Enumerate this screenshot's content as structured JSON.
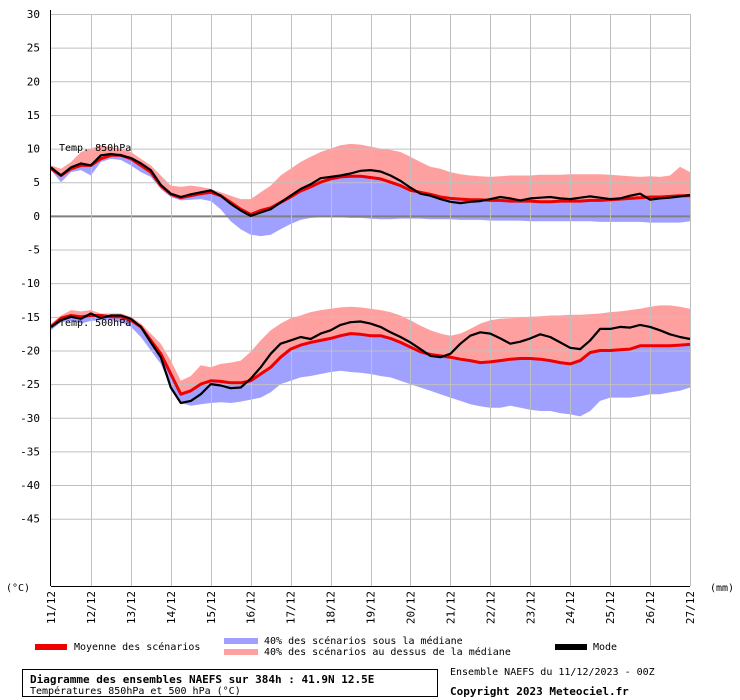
{
  "chart_data": {
    "type": "area",
    "title": "Diagramme des ensembles NAEFS sur 384h : 41.9N 12.5E",
    "subtitle": "Températures 850hPa et 500 hPa (°C)",
    "y_unit_left": "(°C)",
    "y_unit_right": "(mm)",
    "ylim": [
      -55,
      30
    ],
    "yticks": [
      30,
      25,
      20,
      15,
      10,
      5,
      0,
      -5,
      -10,
      -15,
      -20,
      -25,
      -30,
      -35,
      -40,
      -45
    ],
    "x_tick_labels": [
      "11/12",
      "12/12",
      "13/12",
      "14/12",
      "15/12",
      "16/12",
      "17/12",
      "18/12",
      "19/12",
      "20/12",
      "21/12",
      "22/12",
      "23/12",
      "24/12",
      "25/12",
      "26/12",
      "27/12"
    ],
    "x_days": [
      0,
      0.25,
      0.5,
      0.75,
      1,
      1.25,
      1.5,
      1.75,
      2,
      2.25,
      2.5,
      2.75,
      3,
      3.25,
      3.5,
      3.75,
      4,
      4.25,
      4.5,
      4.75,
      5,
      5.25,
      5.5,
      5.75,
      6,
      6.25,
      6.5,
      6.75,
      7,
      7.25,
      7.5,
      7.75,
      8,
      8.25,
      8.5,
      8.75,
      9,
      9.25,
      9.5,
      9.75,
      10,
      10.25,
      10.5,
      10.75,
      11,
      11.25,
      11.5,
      11.75,
      12,
      12.25,
      12.5,
      12.75,
      13,
      13.25,
      13.5,
      13.75,
      14,
      14.25,
      14.5,
      14.75,
      15,
      15.25,
      15.5,
      15.75,
      16
    ],
    "annotations": [
      "Temp. 850hPa",
      "Temp. 500hPa"
    ],
    "colors": {
      "mean": "#ee0000",
      "lower_band": "#a0a0ff",
      "upper_band": "#ffa0a0",
      "mode": "#000000",
      "grid": "#c0c0c0",
      "zero_line": "#808080"
    },
    "series": [
      {
        "group": "850hPa",
        "name": "Moyenne des scénarios",
        "values": [
          7.0,
          6.0,
          7.0,
          7.5,
          7.5,
          8.5,
          9.0,
          9.0,
          8.5,
          7.5,
          6.5,
          4.5,
          3.2,
          2.7,
          3.0,
          3.3,
          3.5,
          3.0,
          2.0,
          1.0,
          0.2,
          0.8,
          1.2,
          2.0,
          2.8,
          3.7,
          4.3,
          5.0,
          5.5,
          5.8,
          5.9,
          5.9,
          5.7,
          5.5,
          5.0,
          4.5,
          3.8,
          3.5,
          3.2,
          2.8,
          2.6,
          2.5,
          2.4,
          2.4,
          2.3,
          2.3,
          2.2,
          2.2,
          2.2,
          2.1,
          2.1,
          2.2,
          2.2,
          2.2,
          2.3,
          2.3,
          2.4,
          2.5,
          2.6,
          2.7,
          2.8,
          2.8,
          2.9,
          3.0,
          3.0
        ]
      },
      {
        "group": "850hPa",
        "name": "Mode",
        "values": [
          7.2,
          6.0,
          7.2,
          7.8,
          7.5,
          9.0,
          9.2,
          9.0,
          8.6,
          7.8,
          6.8,
          4.6,
          3.3,
          2.8,
          3.2,
          3.5,
          3.8,
          3.0,
          1.8,
          0.8,
          0.0,
          0.5,
          1.0,
          2.0,
          3.0,
          4.0,
          4.7,
          5.6,
          5.8,
          6.0,
          6.3,
          6.7,
          6.8,
          6.6,
          6.0,
          5.2,
          4.2,
          3.3,
          3.0,
          2.5,
          2.1,
          1.9,
          2.1,
          2.2,
          2.5,
          2.8,
          2.6,
          2.3,
          2.6,
          2.7,
          2.8,
          2.6,
          2.5,
          2.7,
          2.9,
          2.7,
          2.5,
          2.6,
          3.0,
          3.3,
          2.4,
          2.6,
          2.7,
          2.9,
          3.1
        ]
      },
      {
        "group": "850hPa",
        "name": "40% des scénarios sous la médiane",
        "lower": [
          6.8,
          5.0,
          6.5,
          6.8,
          6.0,
          8.0,
          8.5,
          8.3,
          7.5,
          6.5,
          5.8,
          4.0,
          2.8,
          2.3,
          2.4,
          2.5,
          2.2,
          1.0,
          -0.8,
          -2.0,
          -2.8,
          -3.0,
          -2.8,
          -2.0,
          -1.2,
          -0.6,
          -0.3,
          -0.2,
          -0.2,
          -0.2,
          -0.3,
          -0.3,
          -0.4,
          -0.5,
          -0.5,
          -0.4,
          -0.4,
          -0.4,
          -0.5,
          -0.5,
          -0.5,
          -0.6,
          -0.6,
          -0.6,
          -0.7,
          -0.7,
          -0.7,
          -0.7,
          -0.8,
          -0.8,
          -0.8,
          -0.8,
          -0.8,
          -0.8,
          -0.8,
          -0.9,
          -0.9,
          -0.9,
          -0.9,
          -0.9,
          -1.0,
          -1.0,
          -1.0,
          -1.0,
          -0.8
        ]
      },
      {
        "group": "850hPa",
        "name": "40% des scénarios au dessus de la médiane",
        "upper": [
          7.5,
          7.0,
          8.0,
          9.5,
          10.0,
          10.5,
          10.2,
          10.0,
          9.5,
          8.5,
          7.5,
          6.0,
          4.5,
          4.3,
          4.5,
          4.3,
          4.0,
          3.5,
          3.0,
          2.5,
          2.5,
          3.5,
          4.5,
          6.0,
          7.0,
          8.0,
          8.8,
          9.5,
          10.0,
          10.5,
          10.7,
          10.6,
          10.3,
          10.0,
          9.8,
          9.5,
          8.8,
          8.0,
          7.3,
          7.0,
          6.5,
          6.2,
          6.0,
          5.9,
          5.8,
          5.9,
          6.0,
          6.0,
          6.0,
          6.1,
          6.1,
          6.1,
          6.2,
          6.2,
          6.2,
          6.2,
          6.1,
          6.0,
          5.9,
          5.8,
          5.9,
          5.8,
          6.0,
          7.3,
          6.5
        ]
      },
      {
        "group": "500hPa",
        "name": "Moyenne des scénarios",
        "values": [
          -16.5,
          -15.2,
          -14.8,
          -15.0,
          -14.8,
          -14.8,
          -15.0,
          -15.0,
          -15.5,
          -16.5,
          -18.5,
          -20.5,
          -23.5,
          -26.5,
          -26.0,
          -25.0,
          -24.5,
          -24.6,
          -24.8,
          -24.8,
          -24.5,
          -23.5,
          -22.5,
          -21.0,
          -19.8,
          -19.2,
          -18.8,
          -18.5,
          -18.2,
          -17.8,
          -17.5,
          -17.6,
          -17.8,
          -17.8,
          -18.2,
          -18.8,
          -19.5,
          -20.2,
          -20.6,
          -20.8,
          -21.0,
          -21.3,
          -21.5,
          -21.8,
          -21.7,
          -21.5,
          -21.3,
          -21.2,
          -21.2,
          -21.3,
          -21.5,
          -21.8,
          -22.0,
          -21.5,
          -20.3,
          -20.0,
          -20.0,
          -19.9,
          -19.8,
          -19.3,
          -19.3,
          -19.3,
          -19.3,
          -19.2,
          -19.1
        ]
      },
      {
        "group": "500hPa",
        "name": "Mode",
        "values": [
          -16.5,
          -15.5,
          -15.0,
          -15.3,
          -14.5,
          -15.2,
          -14.8,
          -14.8,
          -15.3,
          -16.5,
          -18.8,
          -21.0,
          -25.5,
          -27.8,
          -27.5,
          -26.5,
          -25.0,
          -25.2,
          -25.6,
          -25.5,
          -24.2,
          -22.5,
          -20.5,
          -19.0,
          -18.5,
          -18.0,
          -18.3,
          -17.5,
          -17.0,
          -16.2,
          -15.8,
          -15.7,
          -16.0,
          -16.5,
          -17.3,
          -18.0,
          -18.8,
          -19.8,
          -20.8,
          -21.0,
          -20.5,
          -19.0,
          -17.8,
          -17.3,
          -17.5,
          -18.2,
          -19.0,
          -18.7,
          -18.2,
          -17.6,
          -18.0,
          -18.8,
          -19.6,
          -19.8,
          -18.5,
          -16.8,
          -16.8,
          -16.5,
          -16.6,
          -16.2,
          -16.5,
          -17.0,
          -17.6,
          -18.0,
          -18.3
        ]
      },
      {
        "group": "500hPa",
        "name": "40% des scénarios sous la médiane",
        "lower": [
          -17.0,
          -15.8,
          -15.6,
          -16.0,
          -15.6,
          -15.5,
          -15.5,
          -15.8,
          -16.5,
          -18.0,
          -20.0,
          -22.0,
          -25.5,
          -27.8,
          -28.2,
          -28.0,
          -27.8,
          -27.7,
          -27.8,
          -27.6,
          -27.3,
          -27.0,
          -26.2,
          -25.0,
          -24.5,
          -24.0,
          -23.8,
          -23.5,
          -23.2,
          -23.0,
          -23.2,
          -23.3,
          -23.5,
          -23.8,
          -24.0,
          -24.5,
          -25.0,
          -25.5,
          -26.0,
          -26.5,
          -27.0,
          -27.5,
          -28.0,
          -28.3,
          -28.5,
          -28.5,
          -28.2,
          -28.5,
          -28.8,
          -29.0,
          -29.0,
          -29.3,
          -29.5,
          -29.8,
          -29.0,
          -27.5,
          -27.0,
          -27.0,
          -27.0,
          -26.8,
          -26.5,
          -26.5,
          -26.2,
          -26.0,
          -25.5
        ]
      },
      {
        "group": "500hPa",
        "name": "40% des scénarios au dessus de la médiane",
        "upper": [
          -16.0,
          -14.8,
          -14.0,
          -14.2,
          -14.0,
          -14.5,
          -14.5,
          -14.5,
          -15.0,
          -16.0,
          -17.5,
          -19.0,
          -21.5,
          -24.5,
          -23.8,
          -22.2,
          -22.5,
          -22.0,
          -21.8,
          -21.5,
          -20.2,
          -18.5,
          -17.0,
          -16.0,
          -15.2,
          -14.8,
          -14.3,
          -14.0,
          -13.8,
          -13.6,
          -13.5,
          -13.6,
          -13.8,
          -14.0,
          -14.3,
          -14.8,
          -15.5,
          -16.3,
          -17.0,
          -17.5,
          -17.8,
          -17.5,
          -16.8,
          -16.0,
          -15.5,
          -15.3,
          -15.2,
          -15.1,
          -15.0,
          -14.9,
          -14.8,
          -14.8,
          -14.7,
          -14.7,
          -14.6,
          -14.5,
          -14.3,
          -14.2,
          -14.0,
          -13.8,
          -13.5,
          -13.3,
          -13.3,
          -13.5,
          -13.8
        ]
      }
    ]
  },
  "legend": {
    "mean_label": "Moyenne des scénarios",
    "lower_label": "40% des scénarios sous la médiane",
    "upper_label": "40% des scénarios au dessus de la médiane",
    "mode_label": "Mode"
  },
  "footer": {
    "title": "Diagramme des ensembles NAEFS sur 384h : 41.9N 12.5E",
    "subtitle": "Températures 850hPa et 500 hPa (°C)",
    "run_info": "Ensemble NAEFS du 11/12/2023 - 00Z",
    "copyright": "Copyright 2023 Meteociel.fr"
  }
}
